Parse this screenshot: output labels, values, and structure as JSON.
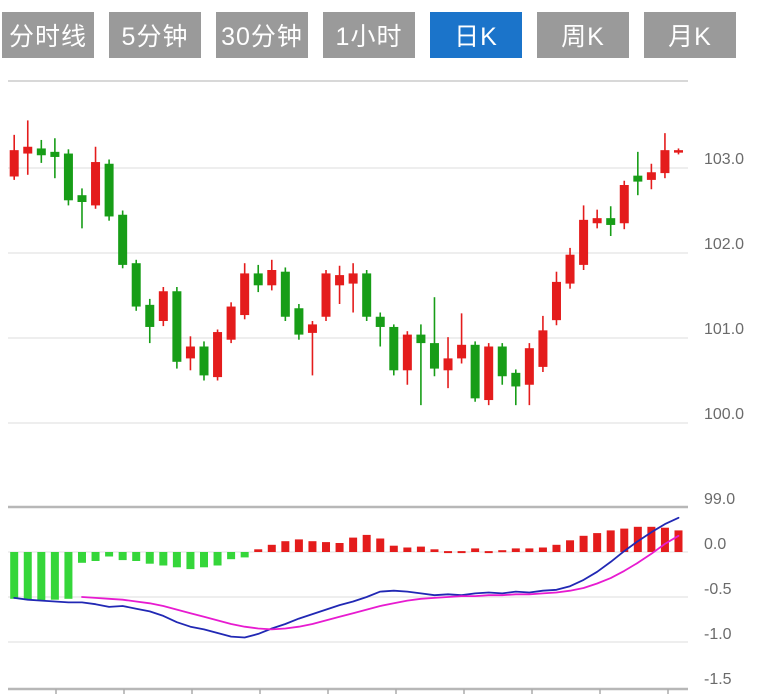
{
  "tabs": {
    "items": [
      {
        "key": "time-line",
        "label": "分时线",
        "active": false
      },
      {
        "key": "5-min",
        "label": "5分钟",
        "active": false
      },
      {
        "key": "30-min",
        "label": "30分钟",
        "active": false
      },
      {
        "key": "1-hour",
        "label": "1小时",
        "active": false
      },
      {
        "key": "daily-k",
        "label": "日K",
        "active": true
      },
      {
        "key": "weekly-k",
        "label": "周K",
        "active": false
      },
      {
        "key": "monthly-k",
        "label": "月K",
        "active": false
      }
    ],
    "inactive_bg": "#9a9a9a",
    "active_bg": "#1b74ca",
    "text_color": "#ffffff"
  },
  "colors": {
    "up": "#e41c1c",
    "down": "#179d17",
    "macd_up_bar": "#e41c1c",
    "macd_down_bar": "#35d63a",
    "dif_line": "#2128b4",
    "dea_line": "#e71bd0",
    "grid": "#e3e3e3",
    "zero_line": "#e0e0e0",
    "axis": "#b7b7b7",
    "frame": "#cccccc",
    "tick": "#aaaaaa",
    "label": "#6b6b6b"
  },
  "chart_data": {
    "type": "candlestick",
    "title": "",
    "legend_position": "none",
    "grid": true,
    "price_axis": {
      "side": "right",
      "tick_labels": [
        "103.0",
        "102.0",
        "101.0",
        "100.0",
        "99.0"
      ],
      "tick_values": [
        103.0,
        102.0,
        101.0,
        100.0,
        99.0
      ],
      "range": [
        98.97,
        104.02
      ]
    },
    "candles": {
      "open": [
        102.9,
        103.17,
        103.23,
        103.19,
        103.17,
        102.68,
        102.56,
        103.05,
        102.45,
        101.88,
        101.39,
        101.2,
        101.55,
        100.76,
        100.9,
        100.54,
        100.98,
        101.27,
        101.76,
        101.62,
        101.78,
        101.35,
        101.06,
        101.25,
        101.62,
        101.64,
        101.76,
        101.25,
        101.13,
        100.62,
        101.04,
        100.94,
        100.62,
        100.76,
        100.92,
        100.27,
        100.9,
        100.59,
        100.45,
        100.66,
        101.21,
        101.64,
        101.86,
        102.35,
        102.41,
        102.35,
        102.91,
        102.86,
        102.94,
        103.19
      ],
      "high": [
        103.39,
        103.56,
        103.33,
        103.35,
        103.22,
        102.76,
        103.25,
        103.1,
        102.5,
        101.92,
        101.46,
        101.6,
        101.6,
        101.02,
        100.96,
        101.1,
        101.42,
        101.88,
        101.86,
        101.92,
        101.83,
        101.4,
        101.2,
        101.8,
        101.85,
        101.88,
        101.8,
        101.3,
        101.16,
        101.08,
        101.16,
        101.48,
        101.01,
        101.29,
        100.96,
        100.94,
        100.94,
        100.63,
        100.94,
        101.26,
        101.78,
        102.06,
        102.56,
        102.51,
        102.55,
        102.85,
        103.19,
        103.05,
        103.41,
        103.23
      ],
      "low": [
        102.86,
        102.92,
        103.06,
        102.88,
        102.56,
        102.29,
        102.52,
        102.38,
        101.82,
        101.32,
        100.94,
        101.14,
        100.64,
        100.62,
        100.5,
        100.5,
        100.94,
        101.22,
        101.54,
        101.56,
        101.2,
        100.98,
        100.56,
        101.2,
        101.4,
        101.3,
        101.2,
        100.9,
        100.56,
        100.45,
        100.21,
        100.55,
        100.41,
        100.7,
        100.25,
        100.21,
        100.45,
        100.21,
        100.21,
        100.6,
        101.15,
        101.58,
        101.8,
        102.29,
        102.2,
        102.28,
        102.68,
        102.75,
        102.88,
        103.16
      ],
      "close": [
        103.21,
        103.25,
        103.15,
        103.13,
        102.62,
        102.6,
        103.07,
        102.43,
        101.86,
        101.37,
        101.13,
        101.55,
        100.72,
        100.9,
        100.56,
        101.07,
        101.37,
        101.76,
        101.62,
        101.8,
        101.25,
        101.04,
        101.16,
        101.76,
        101.74,
        101.76,
        101.25,
        101.13,
        100.62,
        101.04,
        100.94,
        100.64,
        100.76,
        100.92,
        100.29,
        100.9,
        100.55,
        100.43,
        100.88,
        101.09,
        101.66,
        101.98,
        102.39,
        102.41,
        102.33,
        102.8,
        102.84,
        102.95,
        103.21,
        103.21
      ]
    },
    "indicator": {
      "name": "MACD",
      "axis_tick_labels": [
        "0.0",
        "-0.5",
        "-1.0",
        "-1.5"
      ],
      "axis_tick_values": [
        0.0,
        -0.5,
        -1.0,
        -1.5
      ],
      "histogram": [
        -0.52,
        -0.53,
        -0.54,
        -0.53,
        -0.52,
        -0.12,
        -0.1,
        -0.05,
        -0.09,
        -0.1,
        -0.13,
        -0.15,
        -0.17,
        -0.19,
        -0.17,
        -0.15,
        -0.08,
        -0.06,
        0.03,
        0.08,
        0.12,
        0.14,
        0.12,
        0.11,
        0.1,
        0.16,
        0.19,
        0.15,
        0.07,
        0.05,
        0.06,
        0.03,
        0.01,
        0.01,
        0.04,
        0.01,
        0.02,
        0.04,
        0.04,
        0.05,
        0.08,
        0.13,
        0.18,
        0.21,
        0.24,
        0.26,
        0.28,
        0.28,
        0.27,
        0.24
      ],
      "dif": [
        -0.51,
        -0.53,
        -0.54,
        -0.55,
        -0.56,
        -0.56,
        -0.58,
        -0.61,
        -0.6,
        -0.63,
        -0.66,
        -0.71,
        -0.78,
        -0.83,
        -0.86,
        -0.9,
        -0.94,
        -0.95,
        -0.91,
        -0.85,
        -0.8,
        -0.74,
        -0.69,
        -0.64,
        -0.59,
        -0.55,
        -0.5,
        -0.44,
        -0.43,
        -0.44,
        -0.46,
        -0.48,
        -0.47,
        -0.48,
        -0.46,
        -0.45,
        -0.46,
        -0.44,
        -0.45,
        -0.43,
        -0.42,
        -0.38,
        -0.31,
        -0.22,
        -0.11,
        0.01,
        0.12,
        0.22,
        0.31,
        0.38
      ],
      "dea": [
        null,
        null,
        null,
        null,
        null,
        -0.5,
        -0.51,
        -0.52,
        -0.53,
        -0.55,
        -0.57,
        -0.6,
        -0.64,
        -0.68,
        -0.72,
        -0.76,
        -0.8,
        -0.83,
        -0.85,
        -0.86,
        -0.85,
        -0.83,
        -0.8,
        -0.76,
        -0.72,
        -0.68,
        -0.64,
        -0.6,
        -0.57,
        -0.54,
        -0.52,
        -0.51,
        -0.5,
        -0.49,
        -0.49,
        -0.48,
        -0.48,
        -0.47,
        -0.47,
        -0.46,
        -0.45,
        -0.43,
        -0.4,
        -0.35,
        -0.29,
        -0.21,
        -0.12,
        -0.02,
        0.09,
        0.18
      ]
    }
  }
}
